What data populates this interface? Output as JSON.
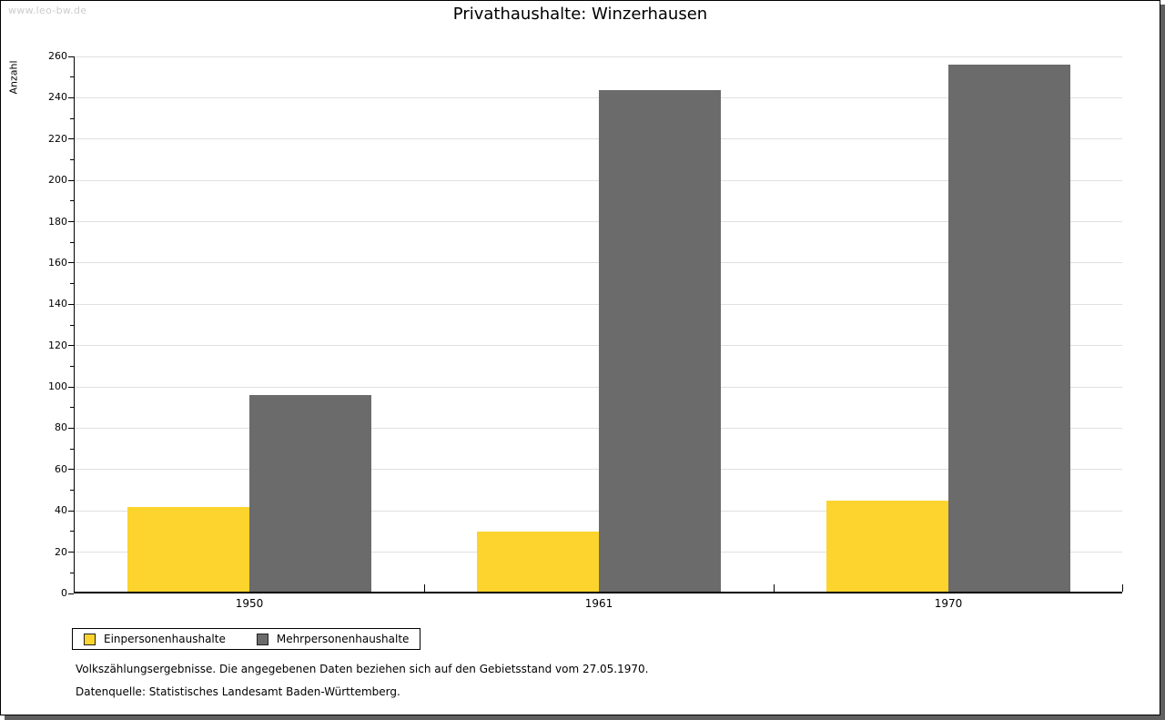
{
  "watermark": "www.leo-bw.de",
  "chart_data": {
    "type": "bar",
    "title": "Privathaushalte: Winzerhausen",
    "ylabel": "Anzahl",
    "xlabel": "",
    "categories": [
      "1950",
      "1961",
      "1970"
    ],
    "series": [
      {
        "name": "Einpersonenhaushalte",
        "color": "#FCD42D",
        "values": [
          41,
          29,
          44
        ]
      },
      {
        "name": "Mehrpersonenhaushalte",
        "color": "#6B6B6B",
        "values": [
          95,
          243,
          255
        ]
      }
    ],
    "ylim": [
      0,
      260
    ],
    "ytick_step": 20,
    "minor_tick_step": 10,
    "grid": true,
    "legend_position": "bottom-left"
  },
  "footer": {
    "line1": "Volkszählungsergebnisse. Die angegebenen Daten beziehen sich auf den Gebietsstand vom 27.05.1970.",
    "line2": "Datenquelle: Statistisches Landesamt Baden-Württemberg."
  }
}
